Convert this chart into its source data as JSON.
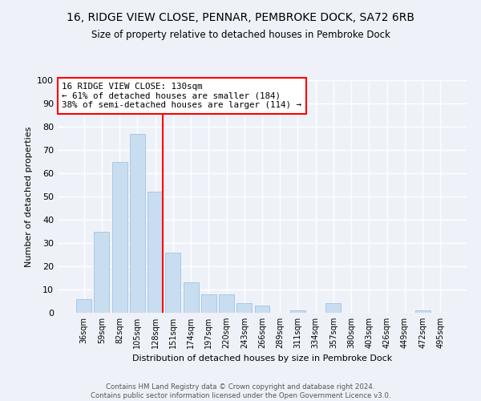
{
  "title1": "16, RIDGE VIEW CLOSE, PENNAR, PEMBROKE DOCK, SA72 6RB",
  "title2": "Size of property relative to detached houses in Pembroke Dock",
  "xlabel": "Distribution of detached houses by size in Pembroke Dock",
  "ylabel": "Number of detached properties",
  "categories": [
    "36sqm",
    "59sqm",
    "82sqm",
    "105sqm",
    "128sqm",
    "151sqm",
    "174sqm",
    "197sqm",
    "220sqm",
    "243sqm",
    "266sqm",
    "289sqm",
    "311sqm",
    "334sqm",
    "357sqm",
    "380sqm",
    "403sqm",
    "426sqm",
    "449sqm",
    "472sqm",
    "495sqm"
  ],
  "values": [
    6,
    35,
    65,
    77,
    52,
    26,
    13,
    8,
    8,
    4,
    3,
    0,
    1,
    0,
    4,
    0,
    0,
    0,
    0,
    1,
    0
  ],
  "bar_color": "#c8ddf0",
  "bar_edge_color": "#a8c8e8",
  "vline_color": "red",
  "vline_x_index": 4,
  "annotation_text": "16 RIDGE VIEW CLOSE: 130sqm\n← 61% of detached houses are smaller (184)\n38% of semi-detached houses are larger (114) →",
  "annotation_box_color": "white",
  "annotation_box_edge_color": "red",
  "ylim": [
    0,
    100
  ],
  "yticks": [
    0,
    10,
    20,
    30,
    40,
    50,
    60,
    70,
    80,
    90,
    100
  ],
  "footer1": "Contains HM Land Registry data © Crown copyright and database right 2024.",
  "footer2": "Contains public sector information licensed under the Open Government Licence v3.0.",
  "bg_color": "#eef2f8",
  "grid_color": "white"
}
